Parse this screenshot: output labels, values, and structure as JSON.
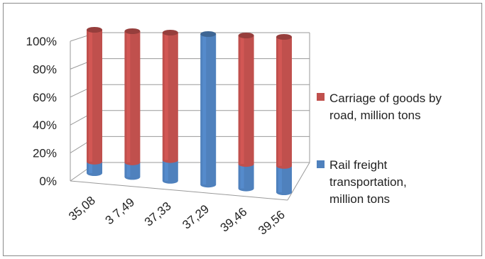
{
  "chart_data": {
    "type": "bar",
    "stacked": true,
    "percent_stacked": true,
    "three_d": true,
    "categories": [
      "35,08",
      "3 7,49",
      "37,33",
      "37,29",
      "39,46",
      "39,56"
    ],
    "series": [
      {
        "name": "Carriage of goods by road, million tons",
        "color": "#c0504d",
        "values": [
          92,
          90,
          86,
          0,
          84,
          83
        ]
      },
      {
        "name": "Rail freight transportation, million tons",
        "color": "#4f81bd",
        "values": [
          8,
          10,
          14,
          100,
          16,
          17
        ]
      }
    ],
    "y_ticks": [
      "0%",
      "20%",
      "40%",
      "60%",
      "80%",
      "100%"
    ],
    "ylim": [
      0,
      100
    ],
    "grid": true,
    "legend_position": "right"
  },
  "legend": {
    "items": [
      {
        "lines": [
          "Carriage of goods by",
          "road, million tons"
        ]
      },
      {
        "lines": [
          "Rail freight",
          "transportation,",
          "million tons"
        ]
      }
    ]
  }
}
